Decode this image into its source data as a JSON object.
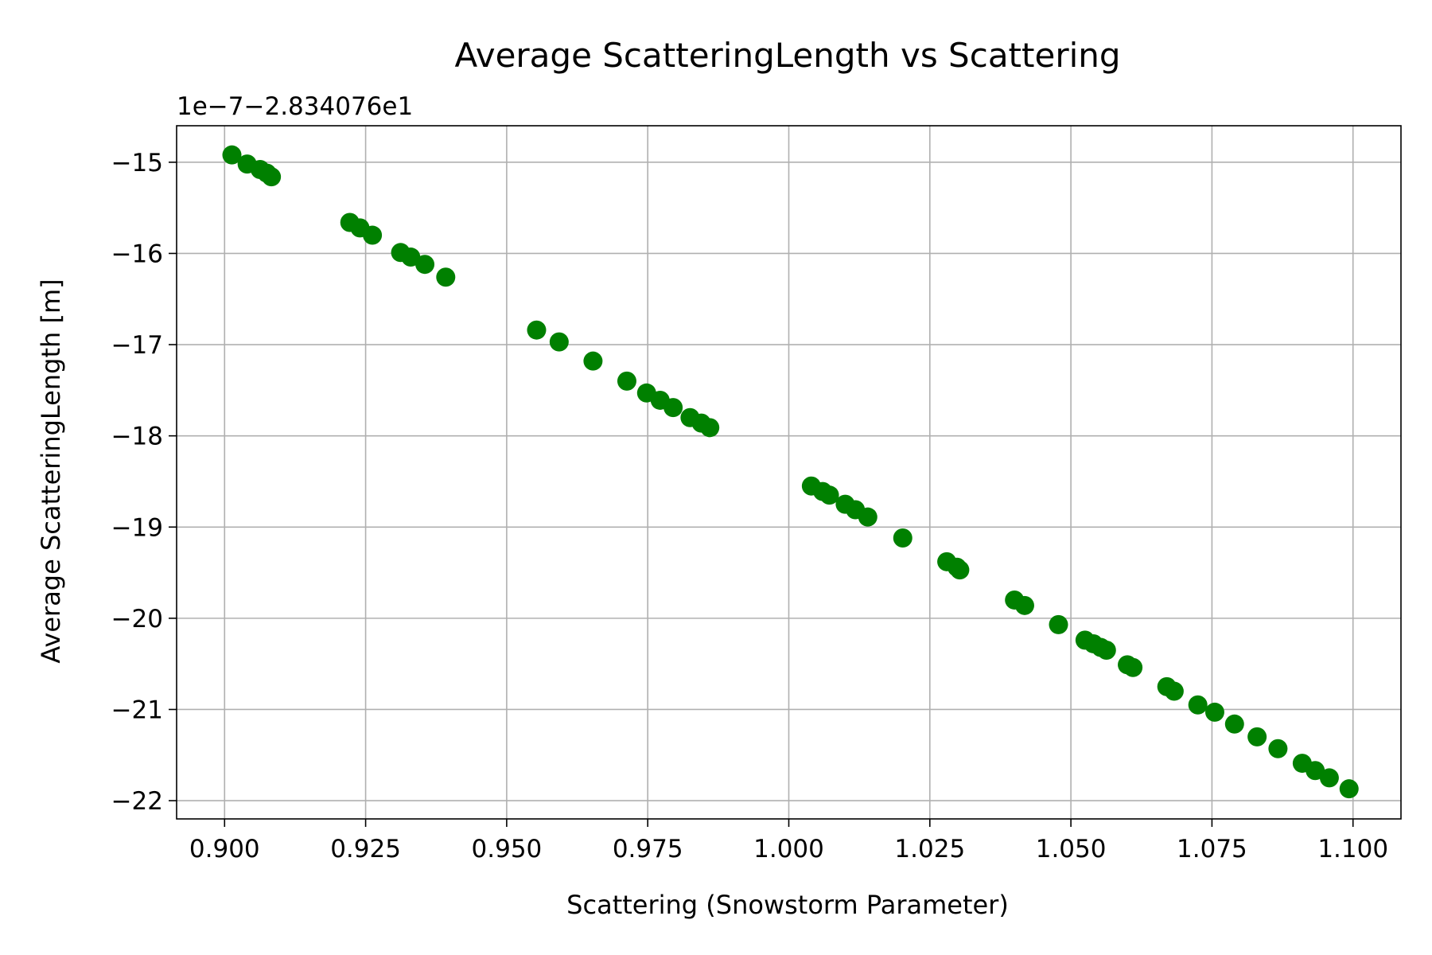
{
  "chart_data": {
    "type": "scatter",
    "title": "Average ScatteringLength vs Scattering",
    "xlabel": "Scattering (Snowstorm Parameter)",
    "ylabel": "Average ScatteringLength [m]",
    "y_offset_label": "1e−7−2.834076e1",
    "xlim": [
      0.8915,
      1.1085
    ],
    "ylim": [
      -22.2,
      -14.6
    ],
    "x_ticks": [
      0.9,
      0.925,
      0.95,
      0.975,
      1.0,
      1.025,
      1.05,
      1.075,
      1.1
    ],
    "x_tick_labels": [
      "0.900",
      "0.925",
      "0.950",
      "0.975",
      "1.000",
      "1.025",
      "1.050",
      "1.075",
      "1.100"
    ],
    "y_ticks": [
      -15,
      -16,
      -17,
      -18,
      -19,
      -20,
      -21,
      -22
    ],
    "y_tick_labels": [
      "−15",
      "−16",
      "−17",
      "−18",
      "−19",
      "−20",
      "−21",
      "−22"
    ],
    "grid": true,
    "marker_color": "#008000",
    "x": [
      0.9013,
      0.904,
      0.9063,
      0.9075,
      0.9083,
      0.9222,
      0.924,
      0.9262,
      0.9312,
      0.933,
      0.9355,
      0.9392,
      0.9553,
      0.9593,
      0.9653,
      0.9713,
      0.9748,
      0.9772,
      0.9795,
      0.9825,
      0.9845,
      0.986,
      1.004,
      1.006,
      1.0072,
      1.01,
      1.0118,
      1.014,
      1.0202,
      1.028,
      1.0298,
      1.0303,
      1.04,
      1.0418,
      1.0478,
      1.0525,
      1.054,
      1.0553,
      1.0563,
      1.06,
      1.061,
      1.067,
      1.0683,
      1.0725,
      1.0755,
      1.079,
      1.083,
      1.0867,
      1.091,
      1.0933,
      1.0958,
      1.0993
    ],
    "y": [
      -14.92,
      -15.02,
      -15.08,
      -15.12,
      -15.16,
      -15.66,
      -15.72,
      -15.8,
      -15.99,
      -16.04,
      -16.12,
      -16.26,
      -16.84,
      -16.97,
      -17.18,
      -17.4,
      -17.53,
      -17.61,
      -17.69,
      -17.8,
      -17.86,
      -17.91,
      -18.55,
      -18.61,
      -18.65,
      -18.75,
      -18.81,
      -18.89,
      -19.12,
      -19.38,
      -19.44,
      -19.47,
      -19.8,
      -19.86,
      -20.07,
      -20.24,
      -20.28,
      -20.32,
      -20.35,
      -20.51,
      -20.54,
      -20.75,
      -20.8,
      -20.95,
      -21.03,
      -21.16,
      -21.3,
      -21.43,
      -21.59,
      -21.67,
      -21.75,
      -21.87
    ]
  }
}
